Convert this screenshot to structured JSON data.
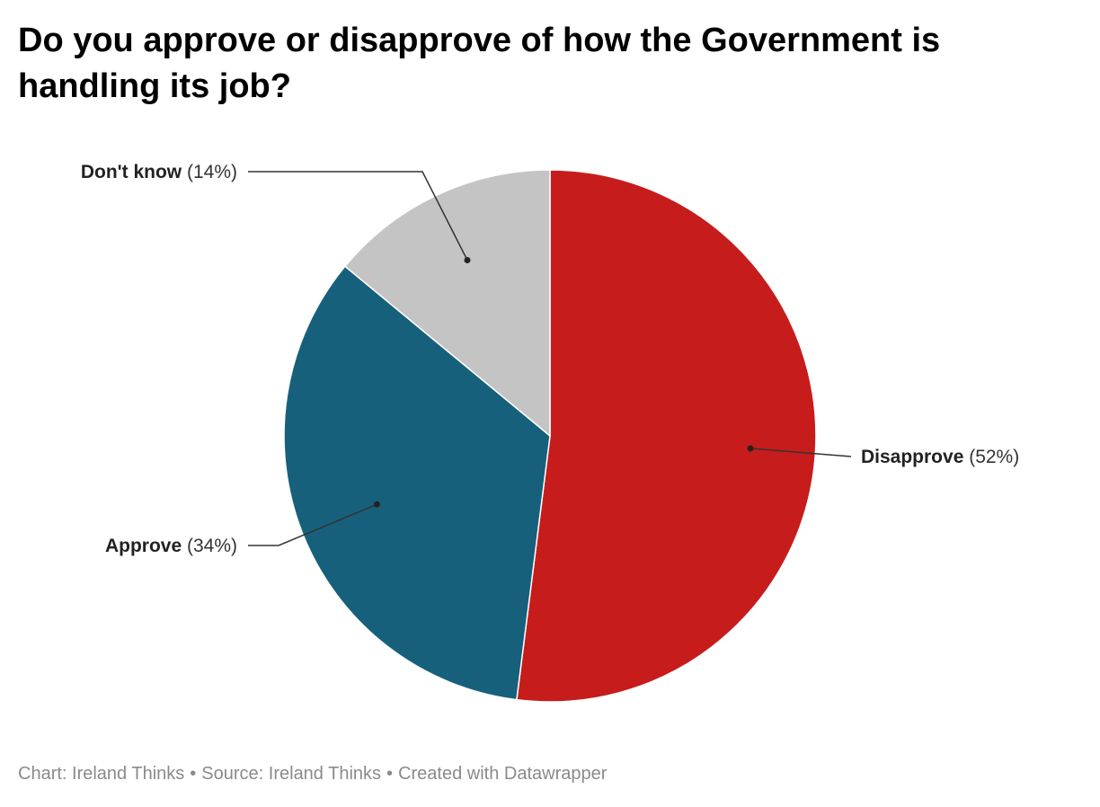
{
  "chart_data": {
    "type": "pie",
    "title": "Do you approve or disapprove of how the Government is handling its job?",
    "slices": [
      {
        "label": "Disapprove",
        "value": 52,
        "pct_text": "(52%)",
        "color": "#c71c1c"
      },
      {
        "label": "Approve",
        "value": 34,
        "pct_text": "(34%)",
        "color": "#17607c"
      },
      {
        "label": "Don't know",
        "value": 14,
        "pct_text": "(14%)",
        "color": "#c4c4c4"
      }
    ]
  },
  "footer": {
    "chart_credit": "Chart: Ireland Thinks",
    "source": "Source: Ireland Thinks",
    "created_with": "Created with Datawrapper",
    "separator": "•"
  }
}
